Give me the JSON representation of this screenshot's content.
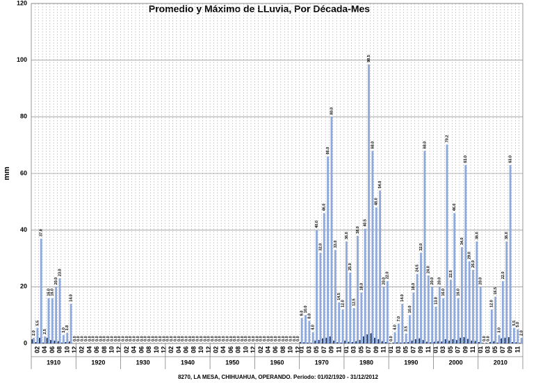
{
  "chart_data": {
    "type": "bar",
    "title": "Promedio y Máximo de LLuvia, Por Década-Mes",
    "y_label": "mm",
    "footer": "8270, LA MESA, CHIHUAHUA, OPERANDO. Período: 01/02/1920 - 31/12/2012",
    "x_groups": [
      "1910",
      "1920",
      "1930",
      "1940",
      "1950",
      "1960",
      "1970",
      "1980",
      "1990",
      "2000",
      "2010"
    ],
    "categories": [
      null,
      "02",
      null,
      "04",
      null,
      "06",
      null,
      "08",
      null,
      "10",
      null,
      "12",
      null,
      "02",
      null,
      "04",
      null,
      "06",
      null,
      "08",
      null,
      "10",
      null,
      "12",
      null,
      "02",
      null,
      "04",
      null,
      "06",
      null,
      "08",
      null,
      "10",
      null,
      "12",
      null,
      "02",
      null,
      "04",
      null,
      "06",
      null,
      "08",
      null,
      "10",
      null,
      "12",
      null,
      "02",
      null,
      "04",
      null,
      "06",
      null,
      "08",
      null,
      "10",
      null,
      "12",
      null,
      "02",
      null,
      "04",
      null,
      "06",
      null,
      "08",
      null,
      "10",
      null,
      "12",
      "01",
      null,
      "03",
      null,
      "05",
      null,
      "07",
      null,
      "09",
      null,
      "11",
      null,
      "01",
      null,
      "03",
      null,
      "05",
      null,
      "07",
      null,
      "09",
      null,
      "11",
      null,
      "01",
      null,
      "03",
      null,
      "05",
      null,
      "07",
      null,
      "09",
      null,
      "11",
      null,
      "01",
      null,
      "03",
      null,
      "05",
      null,
      "07",
      null,
      "09",
      null,
      "11",
      null,
      "01",
      null,
      "03",
      null,
      "05",
      null,
      "07",
      null,
      "09",
      null,
      "11",
      null
    ],
    "series": [
      {
        "color": "#1f3864",
        "values": [
          1.5,
          0.5,
          2.0,
          0.3,
          2.0,
          1.2,
          1.0,
          0.8,
          0.3,
          0.5,
          0.7,
          0,
          0,
          0,
          0,
          0,
          0,
          0,
          0,
          0,
          0,
          0,
          0,
          0,
          0,
          0,
          0,
          0,
          0,
          0,
          0,
          0,
          0,
          0,
          0,
          0,
          0,
          0,
          0,
          0,
          0,
          0,
          0,
          0,
          0,
          0,
          0,
          0,
          0,
          0,
          0,
          0,
          0,
          0,
          0,
          0,
          0,
          0,
          0,
          0,
          0,
          0,
          0,
          0,
          0,
          0,
          0,
          0,
          0,
          0,
          0,
          0,
          0.5,
          0.4,
          0.3,
          0.2,
          1.0,
          1.2,
          1.8,
          2.0,
          2.5,
          1.0,
          0.4,
          0.3,
          1.0,
          0.6,
          0.5,
          0.8,
          1.2,
          2.5,
          3.2,
          3.6,
          2.0,
          1.5,
          0.8,
          0.5,
          0.2,
          0.3,
          0.4,
          0.3,
          0.4,
          0.5,
          1.0,
          1.5,
          1.8,
          1.2,
          0.6,
          0.4,
          0.6,
          0.8,
          0.7,
          1.5,
          1.0,
          1.5,
          1.2,
          2.0,
          2.2,
          1.6,
          1.0,
          0.9,
          0.5,
          0.2,
          0.2,
          0.5,
          0.8,
          0.3,
          1.8,
          2.0,
          2.2,
          0.5,
          0.4,
          0.2
        ]
      },
      {
        "color": "#8ea9db",
        "values": [
          2,
          5.5,
          37,
          2.5,
          16,
          16,
          20,
          23,
          3,
          3.8,
          14,
          0,
          0,
          0,
          0,
          0,
          0,
          0,
          0,
          0,
          0,
          0,
          0,
          0,
          0,
          0,
          0,
          0,
          0,
          0,
          0,
          0,
          0,
          0,
          0,
          0,
          0,
          0,
          0,
          0,
          0,
          0,
          0,
          0,
          0,
          0,
          0,
          0,
          0,
          0,
          0,
          0,
          0,
          0,
          0,
          0,
          0,
          0,
          0,
          0,
          0,
          0,
          0,
          0,
          0,
          0,
          0,
          0,
          0,
          0,
          0,
          0,
          9,
          10,
          8,
          4,
          40,
          32,
          46,
          66,
          80,
          33,
          14.5,
          12,
          36,
          25,
          12.5,
          38,
          18,
          40.5,
          98.5,
          68,
          48,
          54,
          20,
          22,
          0,
          4,
          7,
          14,
          3.5,
          10,
          18,
          24.5,
          32,
          68,
          24,
          20,
          13,
          20,
          16,
          70.2,
          22.5,
          46,
          16,
          34,
          63,
          29,
          26,
          36,
          20,
          0,
          0,
          12,
          16.5,
          3,
          22,
          36,
          63,
          5.5,
          5,
          2
        ],
        "value_labels": [
          "2.0",
          "5.5",
          "37.0",
          "2.5",
          "16.0",
          "16.0",
          "20.0",
          "23.0",
          "3.0",
          "3.8",
          "14.0",
          "0.0",
          "0.0",
          "0.0",
          "0.0",
          "0.0",
          "0.0",
          "0.0",
          "0.0",
          "0.0",
          "0.0",
          "0.0",
          "0.0",
          "0.0",
          "0.0",
          "0.0",
          "0.0",
          "0.0",
          "0.0",
          "0.0",
          "0.0",
          "0.0",
          "0.0",
          "0.0",
          "0.0",
          "0.0",
          "0.0",
          "0.0",
          "0.0",
          "0.0",
          "0.0",
          "0.0",
          "0.0",
          "0.0",
          "0.0",
          "0.0",
          "0.0",
          "0.0",
          "0.0",
          "0.0",
          "0.0",
          "0.0",
          "0.0",
          "0.0",
          "0.0",
          "0.0",
          "0.0",
          "0.0",
          "0.0",
          "0.0",
          "0.0",
          "0.0",
          "0.0",
          "0.0",
          "0.0",
          "0.0",
          "0.0",
          "0.0",
          "0.0",
          "0.0",
          "0.0",
          "0.0",
          "9.0",
          "10.0",
          "8.0",
          "4.0",
          "40.0",
          "32.0",
          "46.0",
          "66.0",
          "80.0",
          "33.0",
          "14.5",
          "12.0",
          "36.0",
          "25.0",
          "12.5",
          "38.0",
          "18.0",
          "40.5",
          "98.5",
          "68.0",
          "48.0",
          "54.0",
          "20.0",
          "22.0",
          "0.0",
          "4.0",
          "7.0",
          "14.0",
          "3.5",
          "10.0",
          "18.0",
          "24.5",
          "32.0",
          "68.0",
          "24.0",
          "20.0",
          "13.0",
          "20.0",
          "16.0",
          "70.2",
          "22.5",
          "46.0",
          "16.0",
          "34.0",
          "63.0",
          "29.0",
          "26.0",
          "36.0",
          "20.0",
          "0.0",
          "0.0",
          "12.0",
          "16.5",
          "3.0",
          "22.0",
          "36.0",
          "63.0",
          "5.5",
          "5.0",
          "2.0"
        ]
      }
    ],
    "ylim": [
      0,
      120
    ],
    "yticks": [
      0,
      20,
      40,
      60,
      80,
      100,
      120
    ],
    "grid": true
  }
}
